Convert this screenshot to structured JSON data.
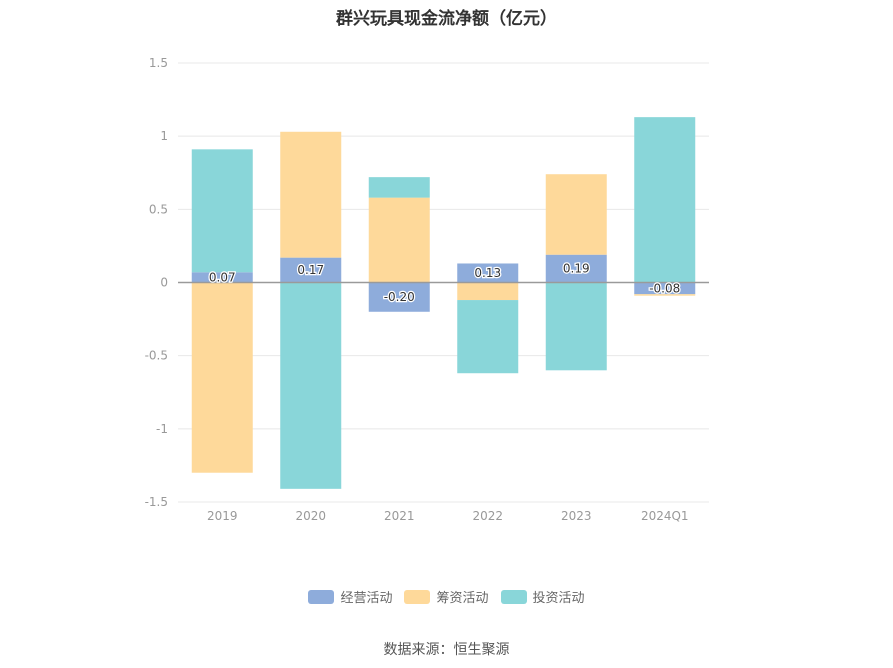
{
  "chart_data": {
    "type": "bar",
    "stacked": true,
    "title": "群兴玩具现金流净额（亿元）",
    "categories": [
      "2019",
      "2020",
      "2021",
      "2022",
      "2023",
      "2024Q1"
    ],
    "series": [
      {
        "name": "经营活动",
        "color": "#8eacdb",
        "values": [
          0.07,
          0.17,
          -0.2,
          0.13,
          0.19,
          -0.08
        ]
      },
      {
        "name": "筹资活动",
        "color": "#fed99a",
        "values": [
          -1.3,
          0.86,
          0.58,
          -0.12,
          0.55,
          -0.01
        ]
      },
      {
        "name": "投资活动",
        "color": "#89d6d9",
        "values": [
          0.84,
          -1.41,
          0.14,
          -0.5,
          -0.6,
          1.13
        ]
      }
    ],
    "data_labels": [
      "0.07",
      "0.17",
      "-0.20",
      "0.13",
      "0.19",
      "-0.08"
    ],
    "y_ticks": [
      "1.5",
      "1",
      "0.5",
      "0",
      "-0.5",
      "-1",
      "-1.5"
    ],
    "ylim": [
      -1.5,
      1.5
    ],
    "grid": true,
    "legend_position": "bottom"
  },
  "source": "数据来源：恒生聚源"
}
